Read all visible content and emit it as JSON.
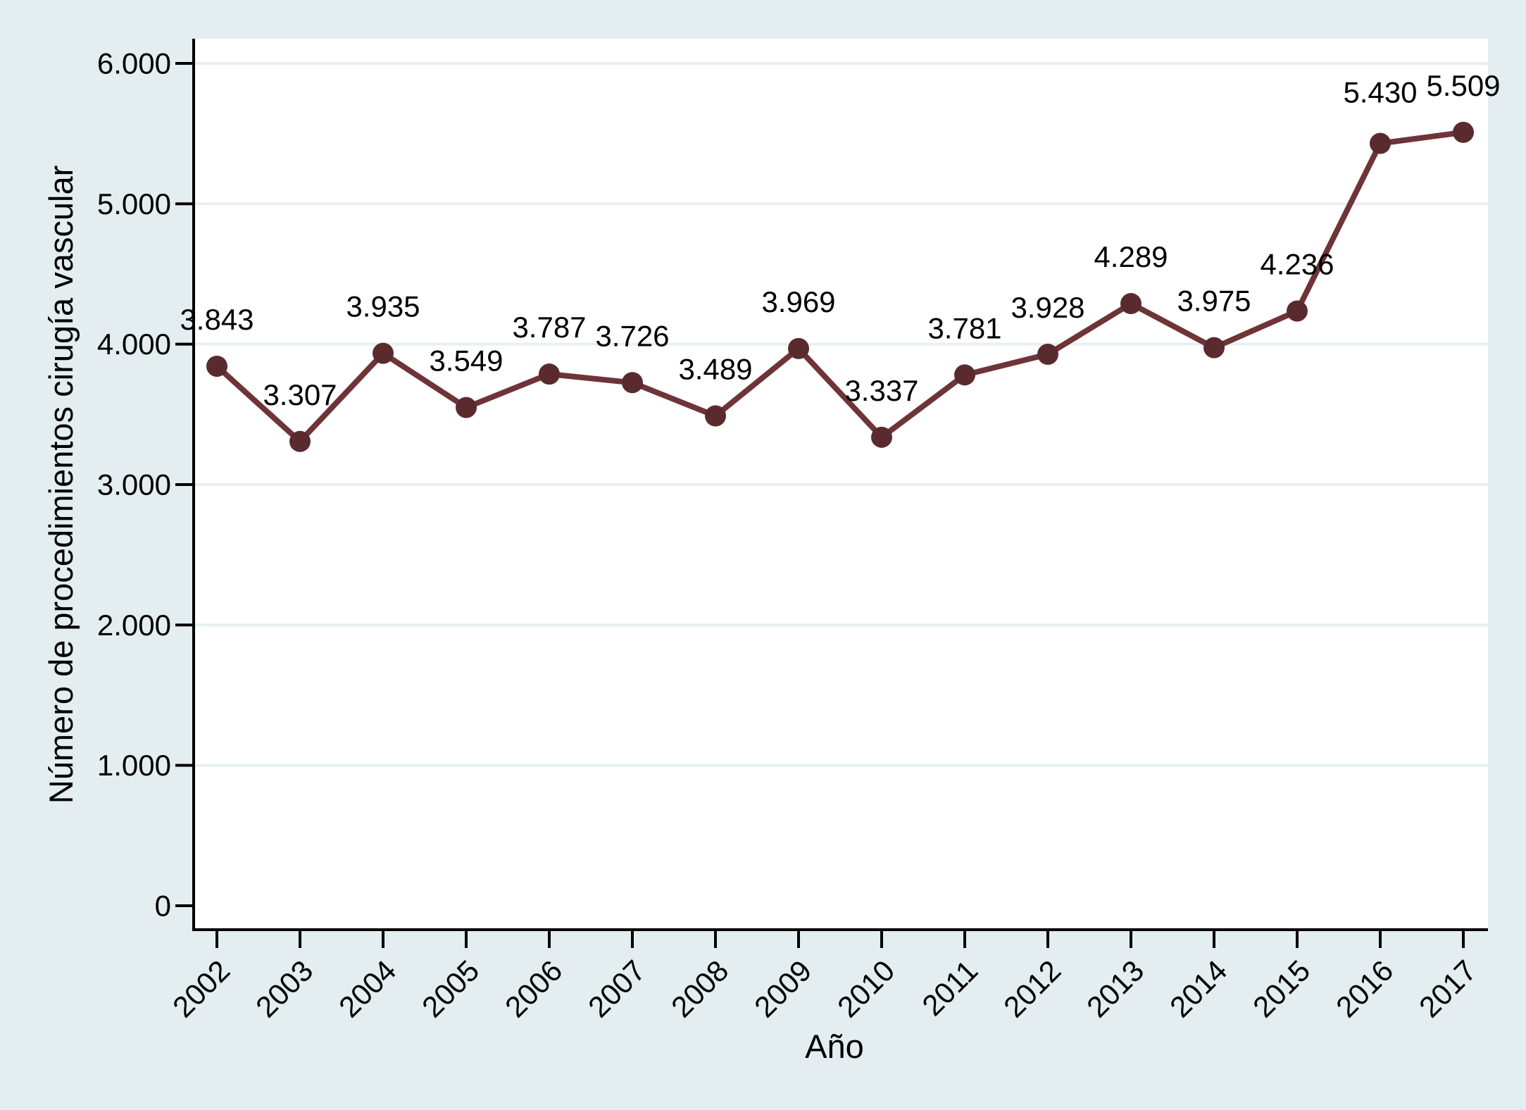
{
  "chart_data": {
    "type": "line",
    "title": "",
    "xlabel": "Año",
    "ylabel": "Número de procedimientos cirugía vascular",
    "categories": [
      "2002",
      "2003",
      "2004",
      "2005",
      "2006",
      "2007",
      "2008",
      "2009",
      "2010",
      "2011",
      "2012",
      "2013",
      "2014",
      "2015",
      "2016",
      "2017"
    ],
    "series": [
      {
        "name": "Número de procedimientos cirugía vascular",
        "values": [
          3843,
          3307,
          3935,
          3549,
          3787,
          3726,
          3489,
          3969,
          3337,
          3781,
          3928,
          4289,
          3975,
          4236,
          5430,
          5509
        ],
        "point_labels": [
          "3.843",
          "3.307",
          "3.935",
          "3.549",
          "3.787",
          "3.726",
          "3.489",
          "3.969",
          "3.337",
          "3.781",
          "3.928",
          "4.289",
          "3.975",
          "4.236",
          "5.430",
          "5.509"
        ]
      }
    ],
    "yticks": {
      "values": [
        0,
        1000,
        2000,
        3000,
        4000,
        5000,
        6000
      ],
      "labels": [
        "0",
        "1.000",
        "2.000",
        "3.000",
        "4.000",
        "5.000",
        "6.000"
      ]
    },
    "ylim": [
      0,
      6170
    ],
    "grid": "horizontal-only",
    "legend": "none",
    "x_label_angle_deg": 45,
    "colors": {
      "line": "#6e3438",
      "marker": "#5a2b2e",
      "figure_background": "#e4edf0",
      "plot_background": "#ffffff",
      "gridline": "#e7eff1",
      "axis": "#000000",
      "text": "#000000"
    }
  }
}
